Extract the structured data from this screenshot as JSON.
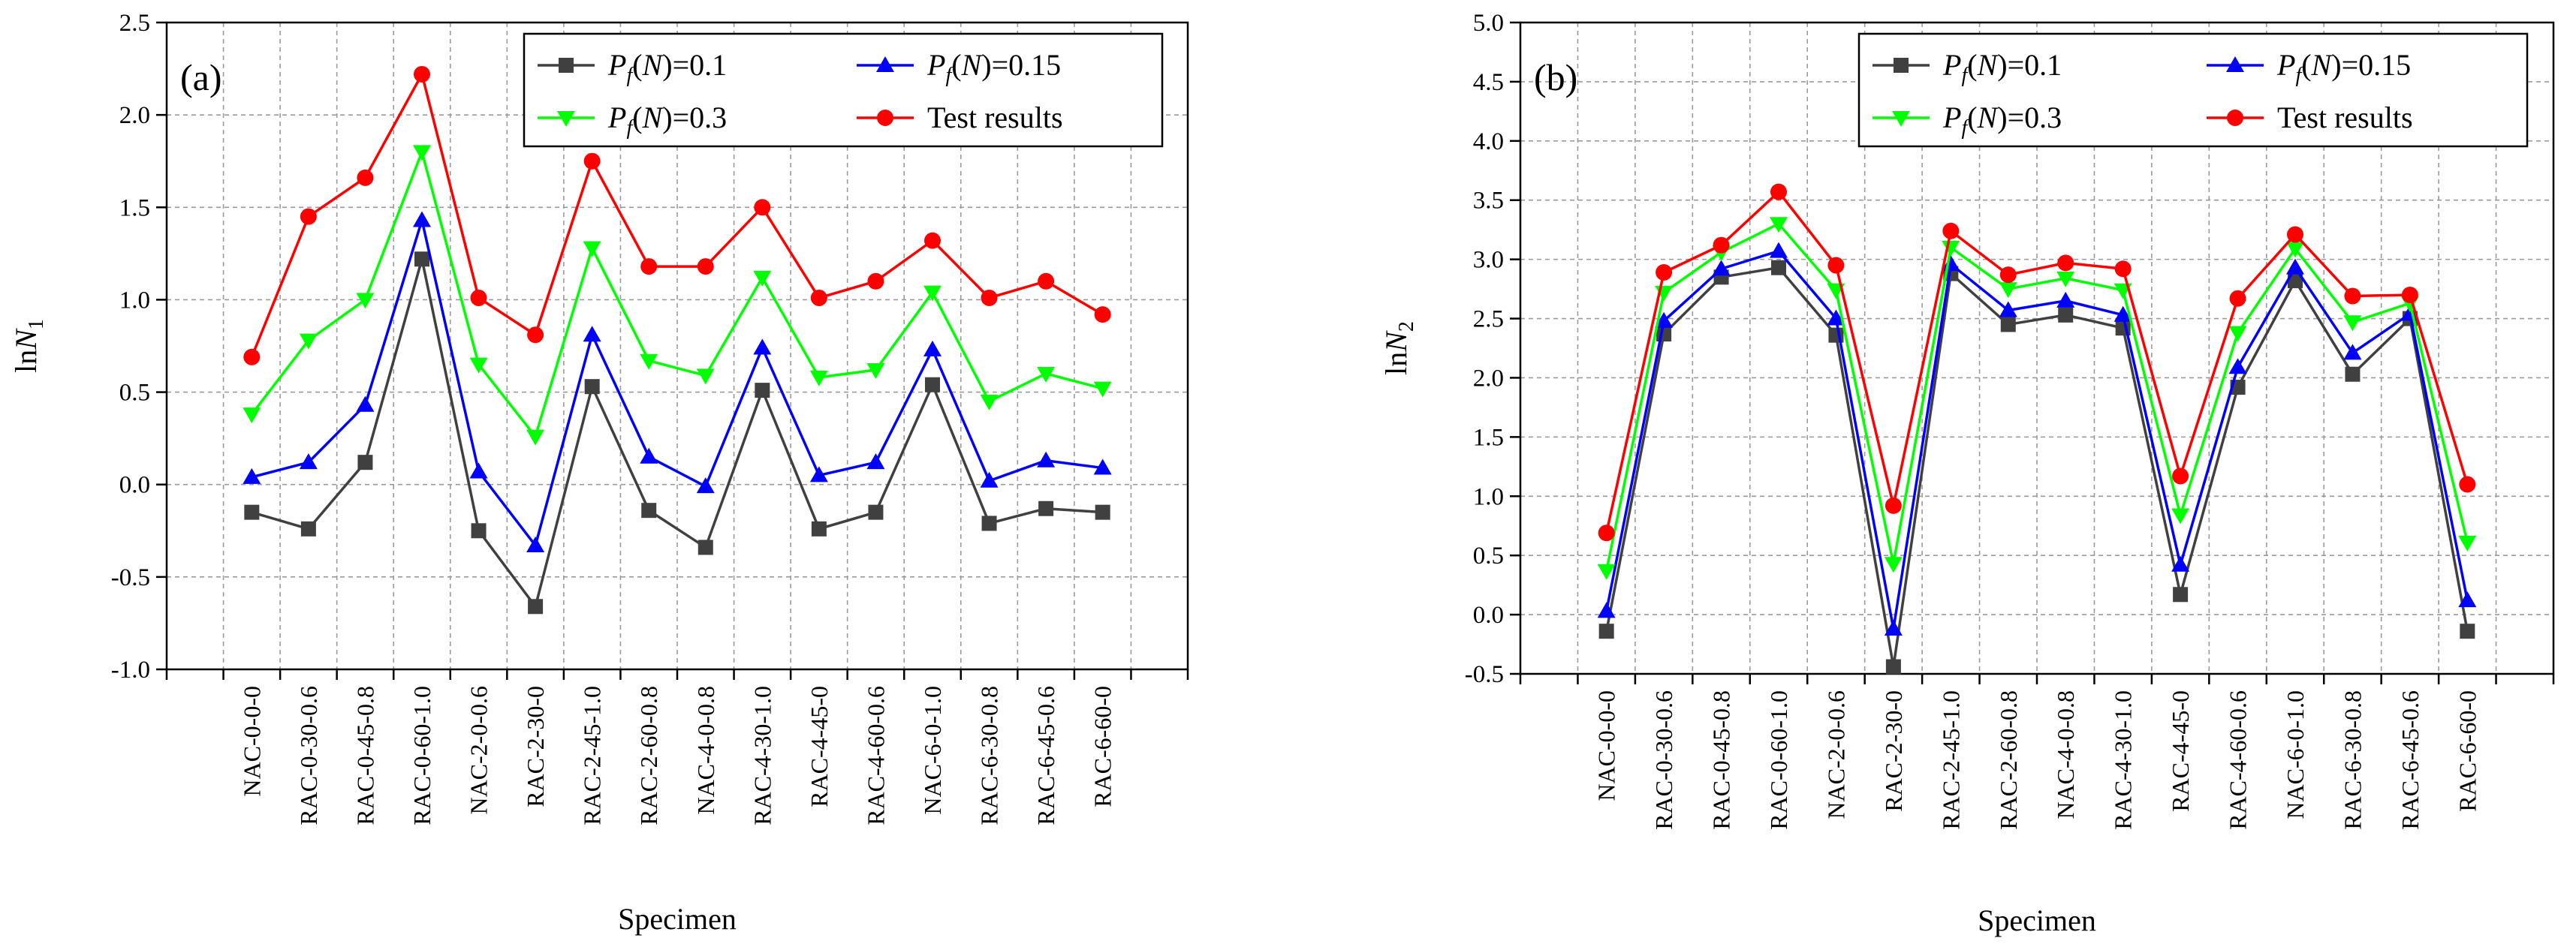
{
  "chart_data": [
    {
      "type": "line",
      "panel_label": "(a)",
      "xlabel": "Specimen",
      "ylabel": {
        "base": "ln",
        "var": "N",
        "sub": "1"
      },
      "ylim": [
        -1.0,
        2.5
      ],
      "yticks": [
        "-1.0",
        "-0.5",
        "0.0",
        "0.5",
        "1.0",
        "1.5",
        "2.0",
        "2.5"
      ],
      "grid": true,
      "legend_position": "top-right",
      "categories": [
        "NAC-0-0-0",
        "RAC-0-30-0.6",
        "RAC-0-45-0.8",
        "RAC-0-60-1.0",
        "NAC-2-0-0.6",
        "RAC-2-30-0",
        "RAC-2-45-1.0",
        "RAC-2-60-0.8",
        "NAC-4-0-0.8",
        "RAC-4-30-1.0",
        "RAC-4-45-0",
        "RAC-4-60-0.6",
        "NAC-6-0-1.0",
        "RAC-6-30-0.8",
        "RAC-6-45-0.6",
        "RAC-6-60-0"
      ],
      "series": [
        {
          "name": "Pf(N)=0.1",
          "legend": {
            "prefix": "P",
            "sub": "f",
            "arg": "N",
            "value": "=0.1"
          },
          "color": "#404040",
          "marker": "square",
          "values": [
            -0.15,
            -0.24,
            0.12,
            1.22,
            -0.25,
            -0.66,
            0.53,
            -0.14,
            -0.34,
            0.51,
            -0.24,
            -0.15,
            0.54,
            -0.21,
            -0.13,
            -0.15
          ]
        },
        {
          "name": "Pf(N)=0.15",
          "legend": {
            "prefix": "P",
            "sub": "f",
            "arg": "N",
            "value": "=0.15"
          },
          "color": "#0000ff",
          "marker": "triangle-up",
          "values": [
            0.04,
            0.12,
            0.43,
            1.43,
            0.07,
            -0.33,
            0.81,
            0.15,
            -0.01,
            0.74,
            0.05,
            0.12,
            0.73,
            0.02,
            0.13,
            0.09
          ]
        },
        {
          "name": "Pf(N)=0.3",
          "legend": {
            "prefix": "P",
            "sub": "f",
            "arg": "N",
            "value": "=0.3"
          },
          "color": "#00ff00",
          "marker": "triangle-down",
          "values": [
            0.38,
            0.78,
            1.0,
            1.8,
            0.65,
            0.26,
            1.28,
            0.67,
            0.59,
            1.12,
            0.58,
            0.62,
            1.04,
            0.45,
            0.6,
            0.52
          ]
        },
        {
          "name": "Test results",
          "legend": {
            "text": "Test results"
          },
          "color": "#ff0000",
          "marker": "circle",
          "values": [
            0.69,
            1.45,
            1.66,
            2.22,
            1.01,
            0.81,
            1.75,
            1.18,
            1.18,
            1.5,
            1.01,
            1.1,
            1.32,
            1.01,
            1.1,
            0.92
          ]
        }
      ]
    },
    {
      "type": "line",
      "panel_label": "(b)",
      "xlabel": "Specimen",
      "ylabel": {
        "base": "ln",
        "var": "N",
        "sub": "2"
      },
      "ylim": [
        -0.5,
        5.0
      ],
      "yticks": [
        "-0.5",
        "0.0",
        "0.5",
        "1.0",
        "1.5",
        "2.0",
        "2.5",
        "3.0",
        "3.5",
        "4.0",
        "4.5",
        "5.0"
      ],
      "grid": true,
      "legend_position": "top-right",
      "categories": [
        "NAC-0-0-0",
        "RAC-0-30-0.6",
        "RAC-0-45-0.8",
        "RAC-0-60-1.0",
        "NAC-2-0-0.6",
        "RAC-2-30-0",
        "RAC-2-45-1.0",
        "RAC-2-60-0.8",
        "NAC-4-0-0.8",
        "RAC-4-30-1.0",
        "RAC-4-45-0",
        "RAC-4-60-0.6",
        "NAC-6-0-1.0",
        "RAC-6-30-0.8",
        "RAC-6-45-0.6",
        "RAC-6-60-0"
      ],
      "series": [
        {
          "name": "Pf(N)=0.1",
          "legend": {
            "prefix": "P",
            "sub": "f",
            "arg": "N",
            "value": "=0.1"
          },
          "color": "#404040",
          "marker": "square",
          "values": [
            -0.14,
            2.37,
            2.85,
            2.93,
            2.36,
            -0.44,
            2.88,
            2.45,
            2.53,
            2.42,
            0.17,
            1.92,
            2.82,
            2.03,
            2.5,
            -0.14
          ]
        },
        {
          "name": "Pf(N)=0.15",
          "legend": {
            "prefix": "P",
            "sub": "f",
            "arg": "N",
            "value": "=0.15"
          },
          "color": "#0000ff",
          "marker": "triangle-up",
          "values": [
            0.03,
            2.48,
            2.92,
            3.07,
            2.5,
            -0.12,
            2.96,
            2.57,
            2.65,
            2.53,
            0.42,
            2.09,
            2.93,
            2.21,
            2.54,
            0.12
          ]
        },
        {
          "name": "Pf(N)=0.3",
          "legend": {
            "prefix": "P",
            "sub": "f",
            "arg": "N",
            "value": "=0.3"
          },
          "color": "#00ff00",
          "marker": "triangle-down",
          "values": [
            0.37,
            2.72,
            3.06,
            3.3,
            2.74,
            0.43,
            3.1,
            2.75,
            2.84,
            2.74,
            0.84,
            2.38,
            3.09,
            2.47,
            2.63,
            0.61
          ]
        },
        {
          "name": "Test results",
          "legend": {
            "text": "Test results"
          },
          "color": "#ff0000",
          "marker": "circle",
          "values": [
            0.69,
            2.89,
            3.12,
            3.57,
            2.95,
            0.92,
            3.24,
            2.87,
            2.97,
            2.92,
            1.17,
            2.67,
            3.21,
            2.69,
            2.7,
            1.1
          ]
        }
      ]
    }
  ]
}
